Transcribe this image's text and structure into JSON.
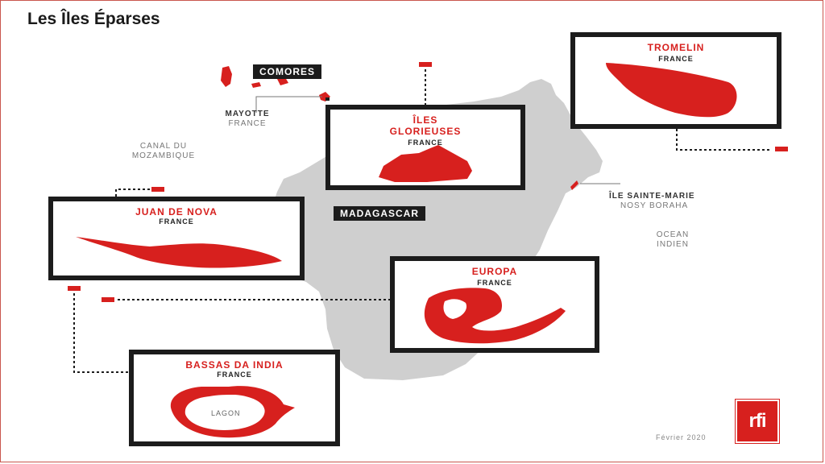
{
  "title": "Les Îles Éparses",
  "labels": {
    "comores": "COMORES",
    "mayotte": "MAYOTTE",
    "mayotte_country": "FRANCE",
    "canal": "CANAL DU",
    "canal2": "MOZAMBIQUE",
    "madagascar": "MADAGASCAR",
    "sainte_marie": "ÎLE SAINTE-MARIE",
    "nosy_boraha": "NOSY BORAHA",
    "ocean": "OCEAN",
    "ocean2": "INDIEN",
    "lagon": "LAGON",
    "date": "Février 2020",
    "logo": "rfi"
  },
  "islands": {
    "tromelin": {
      "name": "TROMELIN",
      "country": "FRANCE"
    },
    "glorieuses": {
      "name1": "ÎLES",
      "name2": "GLORIEUSES",
      "country": "FRANCE"
    },
    "juan": {
      "name": "JUAN DE NOVA",
      "country": "FRANCE"
    },
    "europa": {
      "name": "EUROPA",
      "country": "FRANCE"
    },
    "bassas": {
      "name": "BASSAS DA INDIA",
      "country": "FRANCE"
    }
  },
  "colors": {
    "accent": "#d7201e",
    "land": "#cfcfcf",
    "box": "#1c1c1c"
  }
}
